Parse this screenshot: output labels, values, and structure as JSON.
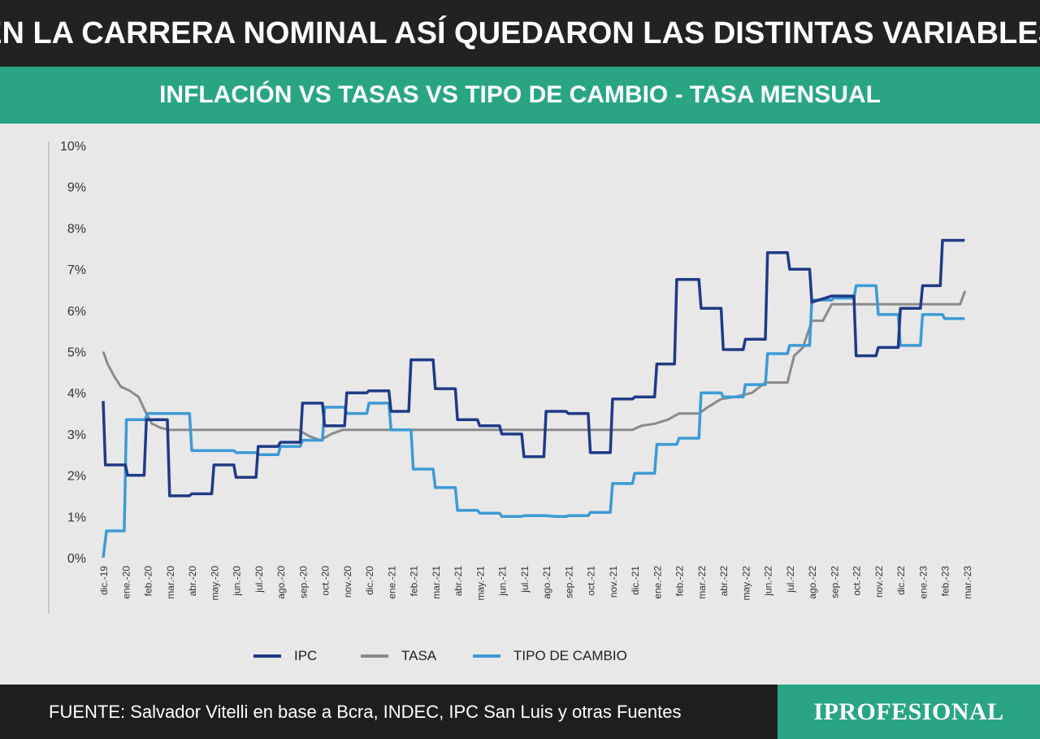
{
  "header": {
    "title": "EN LA CARRERA NOMINAL ASÍ QUEDARON LAS DISTINTAS VARIABLES",
    "subtitle": "INFLACIÓN VS TASAS VS TIPO DE CAMBIO - TASA MENSUAL"
  },
  "footer": {
    "source": "FUENTE: Salvador Vitelli en base a Bcra, INDEC, IPC San Luis y otras Fuentes",
    "brand": "IPROFESIONAL"
  },
  "colors": {
    "title_bg": "#222222",
    "accent": "#2aa583",
    "ipc": "#1f3a86",
    "tasa": "#8a8a8a",
    "tipo_de_cambio": "#3d9ad6",
    "background": "#e8e8e8"
  },
  "chart_data": {
    "type": "line",
    "title": "",
    "xlabel": "",
    "ylabel": "",
    "ylim": [
      0,
      10
    ],
    "y_ticks": [
      "0%",
      "1%",
      "2%",
      "3%",
      "4%",
      "5%",
      "6%",
      "7%",
      "8%",
      "9%",
      "10%"
    ],
    "grid": false,
    "legend_position": "bottom",
    "categories": [
      "dic.-19",
      "ene.-20",
      "feb.-20",
      "mar.-20",
      "abr.-20",
      "may.-20",
      "jun.-20",
      "jul.-20",
      "ago.-20",
      "sep.-20",
      "oct.-20",
      "nov.-20",
      "dic.-20",
      "ene.-21",
      "feb.-21",
      "mar.-21",
      "abr.-21",
      "may.-21",
      "jun.-21",
      "jul.-21",
      "ago.-21",
      "sep.-21",
      "oct.-21",
      "nov.-21",
      "dic.-21",
      "ene.-22",
      "feb.-22",
      "mar.-22",
      "abr.-22",
      "may.-22",
      "jun.-22",
      "jul.-22",
      "ago.-22",
      "sep.-22",
      "oct.-22",
      "nov.-22",
      "dic.-22",
      "ene.-23",
      "feb.-23",
      "mar.-23"
    ],
    "series": [
      {
        "name": "IPC",
        "color": "#1f3a86",
        "points": [
          [
            0,
            3.8
          ],
          [
            0.1,
            2.25
          ],
          [
            1,
            2.25
          ],
          [
            1.1,
            2.0
          ],
          [
            1.85,
            2.0
          ],
          [
            1.95,
            3.35
          ],
          [
            2.9,
            3.35
          ],
          [
            3.0,
            1.5
          ],
          [
            3.9,
            1.5
          ],
          [
            4.0,
            1.55
          ],
          [
            4.9,
            1.55
          ],
          [
            5.0,
            2.25
          ],
          [
            5.9,
            2.25
          ],
          [
            6.0,
            1.95
          ],
          [
            6.9,
            1.95
          ],
          [
            7.0,
            2.7
          ],
          [
            7.9,
            2.7
          ],
          [
            8.0,
            2.8
          ],
          [
            8.9,
            2.8
          ],
          [
            9.0,
            3.75
          ],
          [
            9.9,
            3.75
          ],
          [
            10.0,
            3.2
          ],
          [
            10.9,
            3.2
          ],
          [
            11.0,
            4.0
          ],
          [
            11.9,
            4.0
          ],
          [
            12.0,
            4.05
          ],
          [
            12.9,
            4.05
          ],
          [
            13.0,
            3.55
          ],
          [
            13.8,
            3.55
          ],
          [
            13.9,
            4.8
          ],
          [
            14.9,
            4.8
          ],
          [
            15.0,
            4.1
          ],
          [
            15.9,
            4.1
          ],
          [
            16.0,
            3.35
          ],
          [
            16.9,
            3.35
          ],
          [
            17.0,
            3.2
          ],
          [
            17.9,
            3.2
          ],
          [
            18.0,
            3.0
          ],
          [
            18.9,
            3.0
          ],
          [
            19.0,
            2.45
          ],
          [
            19.9,
            2.45
          ],
          [
            20.0,
            3.55
          ],
          [
            20.9,
            3.55
          ],
          [
            21.0,
            3.5
          ],
          [
            21.9,
            3.5
          ],
          [
            22.0,
            2.55
          ],
          [
            22.9,
            2.55
          ],
          [
            23.0,
            3.85
          ],
          [
            23.9,
            3.85
          ],
          [
            24.0,
            3.9
          ],
          [
            24.9,
            3.9
          ],
          [
            25.0,
            4.7
          ],
          [
            25.8,
            4.7
          ],
          [
            25.9,
            6.75
          ],
          [
            26.9,
            6.75
          ],
          [
            27.0,
            6.05
          ],
          [
            27.9,
            6.05
          ],
          [
            28.0,
            5.05
          ],
          [
            28.9,
            5.05
          ],
          [
            29.0,
            5.3
          ],
          [
            29.9,
            5.3
          ],
          [
            30.0,
            7.4
          ],
          [
            30.9,
            7.4
          ],
          [
            31.0,
            7.0
          ],
          [
            31.9,
            7.0
          ],
          [
            32.0,
            6.2
          ],
          [
            32.9,
            6.35
          ],
          [
            33.9,
            6.35
          ],
          [
            34.0,
            4.9
          ],
          [
            34.9,
            4.9
          ],
          [
            35.0,
            5.1
          ],
          [
            35.9,
            5.1
          ],
          [
            36.0,
            6.05
          ],
          [
            36.9,
            6.05
          ],
          [
            37.0,
            6.6
          ],
          [
            37.8,
            6.6
          ],
          [
            37.9,
            7.7
          ],
          [
            38.9,
            7.7
          ]
        ]
      },
      {
        "name": "TASA",
        "color": "#8a8a8a",
        "points": [
          [
            0,
            5.0
          ],
          [
            0.2,
            4.7
          ],
          [
            0.5,
            4.4
          ],
          [
            0.8,
            4.15
          ],
          [
            1.2,
            4.05
          ],
          [
            1.6,
            3.9
          ],
          [
            1.9,
            3.55
          ],
          [
            2.2,
            3.25
          ],
          [
            2.6,
            3.15
          ],
          [
            3.0,
            3.1
          ],
          [
            8.8,
            3.1
          ],
          [
            9.3,
            2.95
          ],
          [
            9.8,
            2.85
          ],
          [
            10.3,
            3.0
          ],
          [
            10.8,
            3.1
          ],
          [
            23.9,
            3.1
          ],
          [
            24.3,
            3.2
          ],
          [
            24.9,
            3.25
          ],
          [
            25.5,
            3.35
          ],
          [
            26.0,
            3.5
          ],
          [
            26.9,
            3.5
          ],
          [
            27.3,
            3.65
          ],
          [
            27.9,
            3.85
          ],
          [
            28.5,
            3.9
          ],
          [
            29.3,
            4.0
          ],
          [
            29.9,
            4.25
          ],
          [
            30.9,
            4.25
          ],
          [
            31.2,
            4.9
          ],
          [
            31.6,
            5.1
          ],
          [
            32.0,
            5.75
          ],
          [
            32.5,
            5.75
          ],
          [
            32.9,
            6.15
          ],
          [
            38.7,
            6.15
          ],
          [
            38.9,
            6.45
          ],
          [
            38.95,
            6.45
          ]
        ]
      },
      {
        "name": "TIPO DE CAMBIO",
        "color": "#3d9ad6",
        "points": [
          [
            0,
            0.0
          ],
          [
            0.15,
            0.65
          ],
          [
            0.95,
            0.65
          ],
          [
            1.05,
            3.35
          ],
          [
            1.9,
            3.35
          ],
          [
            2.0,
            3.5
          ],
          [
            3.9,
            3.5
          ],
          [
            4.0,
            2.6
          ],
          [
            5.9,
            2.6
          ],
          [
            6.0,
            2.55
          ],
          [
            6.9,
            2.55
          ],
          [
            7.0,
            2.5
          ],
          [
            7.9,
            2.5
          ],
          [
            8.0,
            2.7
          ],
          [
            8.9,
            2.7
          ],
          [
            9.0,
            2.85
          ],
          [
            9.9,
            2.85
          ],
          [
            10.0,
            3.65
          ],
          [
            10.9,
            3.65
          ],
          [
            11.0,
            3.5
          ],
          [
            11.9,
            3.5
          ],
          [
            12.0,
            3.75
          ],
          [
            12.9,
            3.75
          ],
          [
            13.0,
            3.1
          ],
          [
            13.9,
            3.1
          ],
          [
            14.0,
            2.15
          ],
          [
            14.9,
            2.15
          ],
          [
            15.0,
            1.7
          ],
          [
            15.9,
            1.7
          ],
          [
            16.0,
            1.15
          ],
          [
            16.9,
            1.15
          ],
          [
            17.0,
            1.08
          ],
          [
            17.9,
            1.08
          ],
          [
            18.0,
            1.0
          ],
          [
            18.9,
            1.0
          ],
          [
            19.0,
            1.02
          ],
          [
            20.0,
            1.02
          ],
          [
            20.4,
            1.0
          ],
          [
            20.9,
            1.0
          ],
          [
            21.0,
            1.02
          ],
          [
            21.9,
            1.02
          ],
          [
            22.0,
            1.1
          ],
          [
            22.9,
            1.1
          ],
          [
            23.0,
            1.8
          ],
          [
            23.9,
            1.8
          ],
          [
            24.0,
            2.05
          ],
          [
            24.9,
            2.05
          ],
          [
            25.0,
            2.75
          ],
          [
            25.9,
            2.75
          ],
          [
            26.0,
            2.9
          ],
          [
            26.9,
            2.9
          ],
          [
            27.0,
            4.0
          ],
          [
            27.9,
            4.0
          ],
          [
            28.0,
            3.9
          ],
          [
            28.9,
            3.9
          ],
          [
            29.0,
            4.2
          ],
          [
            29.9,
            4.2
          ],
          [
            30.0,
            4.95
          ],
          [
            30.9,
            4.95
          ],
          [
            31.0,
            5.15
          ],
          [
            31.9,
            5.15
          ],
          [
            32.0,
            6.25
          ],
          [
            32.9,
            6.25
          ],
          [
            33.0,
            6.3
          ],
          [
            33.9,
            6.3
          ],
          [
            34.0,
            6.6
          ],
          [
            34.9,
            6.6
          ],
          [
            35.0,
            5.9
          ],
          [
            35.9,
            5.9
          ],
          [
            36.0,
            5.15
          ],
          [
            36.9,
            5.15
          ],
          [
            37.0,
            5.9
          ],
          [
            37.9,
            5.9
          ],
          [
            38.0,
            5.8
          ],
          [
            38.9,
            5.8
          ]
        ]
      }
    ]
  }
}
